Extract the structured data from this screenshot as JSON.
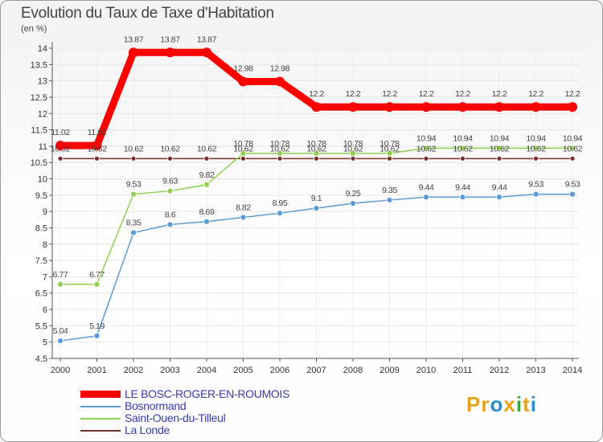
{
  "chart_data": {
    "type": "line",
    "title": "Evolution du Taux de Taxe d'Habitation",
    "ylabel": "(en %)",
    "xlabel": "",
    "ylim": [
      4.5,
      14
    ],
    "ytick_step": 0.5,
    "ytick_labels": [
      "4.5",
      "5",
      "5.5",
      "6",
      "6.5",
      "7",
      "7.5",
      "8",
      "8.5",
      "9",
      "9.5",
      "10",
      "10.5",
      "11",
      "11.5",
      "12",
      "12.5",
      "13",
      "13.5",
      "14"
    ],
    "categories": [
      "2000",
      "2001",
      "2002",
      "2003",
      "2004",
      "2005",
      "2006",
      "2007",
      "2008",
      "2009",
      "2010",
      "2011",
      "2012",
      "2013",
      "2014"
    ],
    "legend_position": "bottom-left",
    "series": [
      {
        "name": "LE BOSC-ROGER-EN-ROUMOIS",
        "color": "#ff0000",
        "values": [
          11.02,
          11.02,
          13.87,
          13.87,
          13.87,
          12.98,
          12.98,
          12.2,
          12.2,
          12.2,
          12.2,
          12.2,
          12.2,
          12.2,
          12.2
        ],
        "labels": [
          "11.02",
          "11.02",
          "13.87",
          "13.87",
          "13.87",
          "12.98",
          "12.98",
          "12.2",
          "12.2",
          "12.2",
          "12.2",
          "12.2",
          "12.2",
          "12.2",
          "12.2"
        ]
      },
      {
        "name": "Bosnormand",
        "color": "#5b9bd5",
        "values": [
          5.04,
          5.19,
          8.35,
          8.6,
          8.69,
          8.82,
          8.95,
          9.1,
          9.25,
          9.35,
          9.44,
          9.44,
          9.44,
          9.53,
          9.53
        ],
        "labels": [
          "5.04",
          "5.19",
          "8.35",
          "8.6",
          "8.69",
          "8.82",
          "8.95",
          "9.1",
          "9.25",
          "9.35",
          "9.44",
          "9.44",
          "9.44",
          "9.53",
          "9.53"
        ]
      },
      {
        "name": "Saint-Ouen-du-Tilleul",
        "color": "#8fd14f",
        "values": [
          6.77,
          6.77,
          9.53,
          9.63,
          9.82,
          10.78,
          10.78,
          10.78,
          10.78,
          10.78,
          10.94,
          10.94,
          10.94,
          10.94,
          10.94
        ],
        "labels": [
          "6.77",
          "6.77",
          "9.53",
          "9.63",
          "9.82",
          "10.78",
          "10.78",
          "10.78",
          "10.78",
          "10.78",
          "10.94",
          "10.94",
          "10.94",
          "10.94",
          "10.94"
        ]
      },
      {
        "name": "La Londe",
        "color": "#7a2e2e",
        "values": [
          10.62,
          10.62,
          10.62,
          10.62,
          10.62,
          10.62,
          10.62,
          10.62,
          10.62,
          10.62,
          10.62,
          10.62,
          10.62,
          10.62,
          10.62
        ],
        "labels": [
          "10.62",
          "10.62",
          "10.62",
          "10.62",
          "10.62",
          "10.62",
          "10.62",
          "10.62",
          "10.62",
          "10.62",
          "10.62",
          "10.62",
          "10.62",
          "10.62",
          "10.62"
        ]
      }
    ]
  },
  "header": {
    "title": "Evolution du Taux de Taxe d'Habitation",
    "unit": "(en %)"
  },
  "legend": {
    "items": [
      {
        "label": "LE BOSC-ROGER-EN-ROUMOIS"
      },
      {
        "label": "Bosnormand"
      },
      {
        "label": "Saint-Ouen-du-Tilleul"
      },
      {
        "label": "La Londe"
      }
    ]
  },
  "logo": {
    "p1": "Pr",
    "p2": "o",
    "p3": "x",
    "p4": "i",
    "p5": "t",
    "p6": "i"
  }
}
